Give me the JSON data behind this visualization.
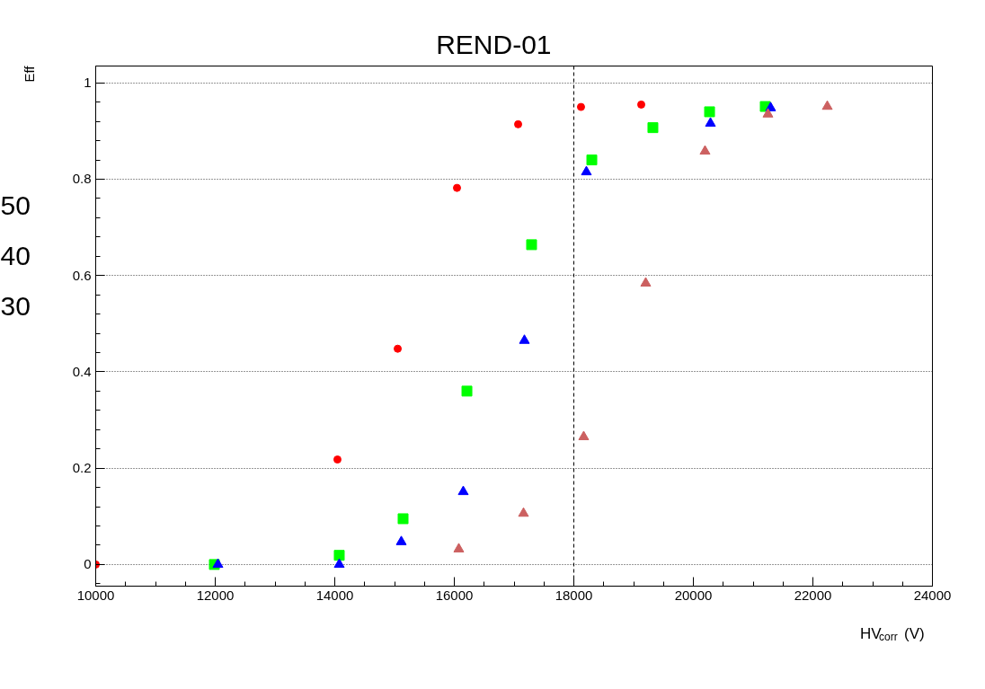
{
  "chart_data": {
    "type": "scatter",
    "xlabel": "HV$_{corr}$(V)",
    "ylabel": "Eff",
    "annotations": [
      "50",
      "40",
      "30"
    ],
    "xlim": [
      10000,
      24000
    ],
    "ylim": [
      -0.045,
      1.035
    ],
    "xticks": [
      10000,
      12000,
      14000,
      16000,
      18000,
      20000,
      22000,
      24000
    ],
    "yticks": [
      0,
      0.2,
      0.4,
      0.6,
      0.8,
      1
    ],
    "grid": "y",
    "ref_lines": [
      {
        "axis": "x",
        "value": 18000,
        "label": "REND-01",
        "color": "#000000",
        "line_style": "dashed"
      }
    ],
    "series": [
      {
        "color": "#ff0000",
        "marker": "circle",
        "x": [
          10000,
          14045,
          15053,
          16045,
          17068,
          18120,
          19128
        ],
        "values": [
          0,
          0.218,
          0.448,
          0.782,
          0.914,
          0.95,
          0.955
        ]
      },
      {
        "color": "#00ff00",
        "marker": "square",
        "x": [
          11985,
          14075,
          15143,
          16211,
          17293,
          18301,
          19323,
          20271,
          21203
        ],
        "values": [
          0,
          0.019,
          0.095,
          0.36,
          0.664,
          0.84,
          0.907,
          0.94,
          0.951
        ]
      },
      {
        "color": "#0000ff",
        "marker": "triangle",
        "x": [
          12045,
          14075,
          15113,
          16150,
          17173,
          18210,
          20286,
          21293
        ],
        "values": [
          0,
          0,
          0.047,
          0.151,
          0.465,
          0.815,
          0.916,
          0.948
        ]
      },
      {
        "color": "#cc6060",
        "marker": "triangle",
        "x": [
          16075,
          17158,
          18165,
          19203,
          20195,
          21248,
          22241
        ],
        "values": [
          0.032,
          0.106,
          0.265,
          0.584,
          0.858,
          0.935,
          0.951
        ]
      }
    ]
  }
}
